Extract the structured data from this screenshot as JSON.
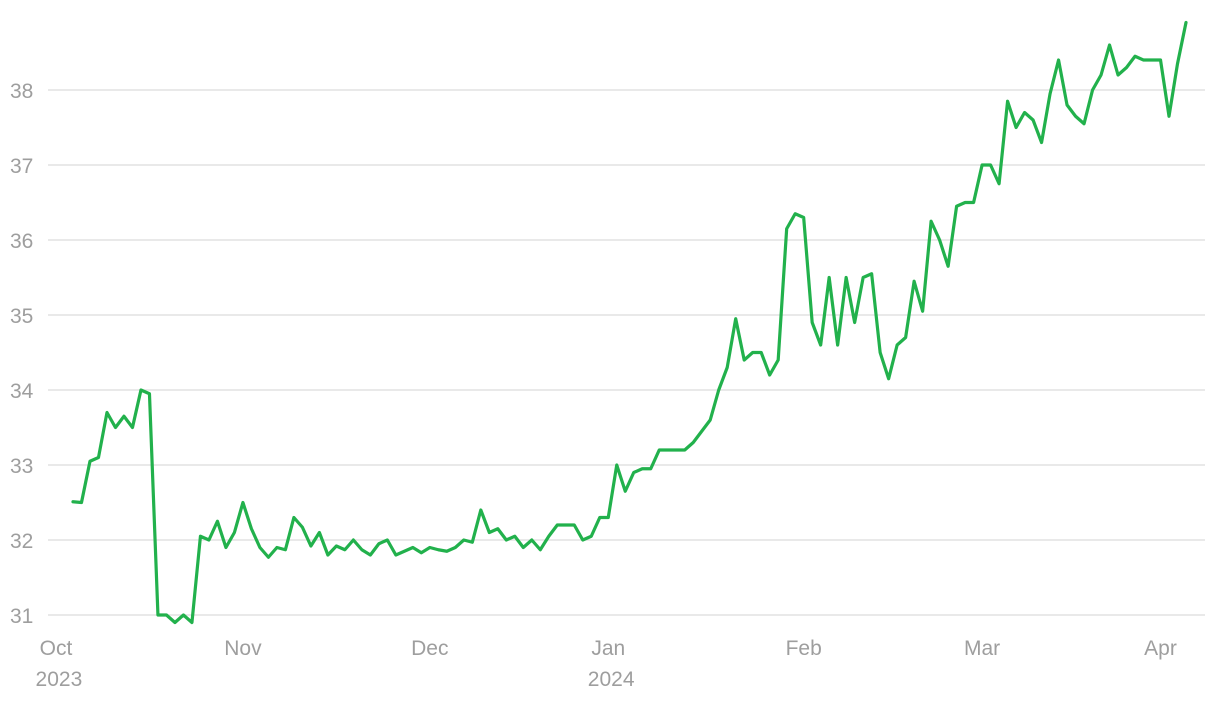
{
  "chart_data": {
    "type": "line",
    "categories": [
      "Oct 2023",
      null,
      null,
      null,
      null,
      null,
      null,
      null,
      null,
      null,
      null,
      null,
      null,
      null,
      null,
      null,
      null,
      null,
      null,
      null,
      null,
      null,
      "Nov",
      null,
      null,
      null,
      null,
      null,
      null,
      null,
      null,
      null,
      null,
      null,
      null,
      null,
      null,
      null,
      null,
      null,
      null,
      null,
      null,
      null,
      "Dec",
      null,
      null,
      null,
      null,
      null,
      null,
      null,
      null,
      null,
      null,
      null,
      null,
      null,
      null,
      null,
      null,
      null,
      null,
      null,
      null,
      "Jan 2024",
      null,
      null,
      null,
      null,
      null,
      null,
      null,
      null,
      null,
      null,
      null,
      null,
      null,
      null,
      null,
      null,
      null,
      null,
      null,
      null,
      null,
      null,
      "Feb",
      null,
      null,
      null,
      null,
      null,
      null,
      null,
      null,
      null,
      null,
      null,
      null,
      null,
      null,
      null,
      null,
      null,
      null,
      null,
      null,
      "Mar",
      null,
      null,
      null,
      null,
      null,
      null,
      null,
      null,
      null,
      null,
      null,
      null,
      null,
      null,
      null,
      null,
      null,
      null,
      null,
      null,
      "Apr",
      null,
      null,
      null
    ],
    "values": [
      null,
      null,
      32.51,
      32.5,
      33.05,
      33.1,
      33.7,
      33.5,
      33.65,
      33.5,
      34.0,
      33.95,
      31.0,
      31.0,
      30.9,
      31.0,
      30.9,
      32.05,
      32.0,
      32.25,
      31.9,
      32.1,
      32.5,
      32.15,
      31.9,
      31.77,
      31.9,
      31.87,
      32.3,
      32.17,
      31.92,
      32.1,
      31.8,
      31.92,
      31.87,
      32.0,
      31.87,
      31.8,
      31.95,
      32.0,
      31.8,
      31.85,
      31.9,
      31.83,
      31.9,
      31.87,
      31.85,
      31.9,
      32.0,
      31.97,
      32.4,
      32.1,
      32.15,
      32.0,
      32.05,
      31.9,
      32.0,
      31.87,
      32.05,
      32.2,
      32.2,
      32.2,
      32.0,
      32.05,
      32.3,
      32.3,
      33.0,
      32.65,
      32.9,
      32.95,
      32.95,
      33.2,
      33.2,
      33.2,
      33.2,
      33.3,
      33.45,
      33.6,
      34.0,
      34.3,
      34.95,
      34.4,
      34.5,
      34.5,
      34.2,
      34.4,
      36.15,
      36.35,
      36.3,
      34.9,
      34.6,
      35.5,
      34.6,
      35.5,
      34.9,
      35.5,
      35.55,
      34.5,
      34.15,
      34.6,
      34.7,
      35.45,
      35.05,
      36.25,
      36.0,
      35.65,
      36.45,
      36.5,
      36.5,
      37.0,
      37.0,
      36.75,
      37.85,
      37.5,
      37.7,
      37.6,
      37.3,
      37.95,
      38.4,
      37.8,
      37.65,
      37.55,
      38.0,
      38.2,
      38.6,
      38.2,
      38.3,
      38.45,
      38.4,
      38.4,
      38.4,
      37.65,
      38.35,
      38.9
    ],
    "color": "#22b14c",
    "ylim": [
      31,
      39
    ],
    "yticks": [
      31,
      32,
      33,
      34,
      35,
      36,
      37,
      38
    ],
    "grid": true
  }
}
